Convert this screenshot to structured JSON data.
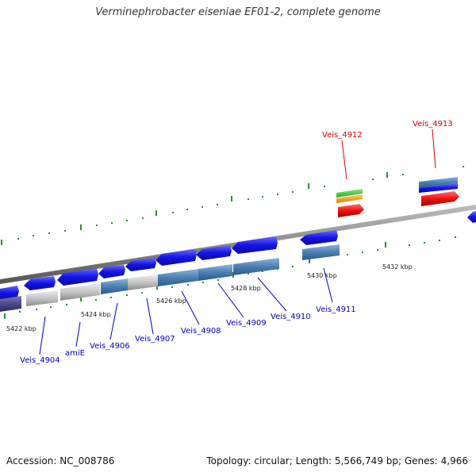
{
  "title": "Verminephrobacter eiseniae EF01-2, complete genome",
  "footer": {
    "accession": "Accession: NC_008786",
    "summary": "Topology: circular; Length: 5,566,749 bp; Genes: 4,966"
  },
  "colors": {
    "backbone": "#8c8c8c",
    "forward_gene": "#1414e6",
    "reverse_gene_steel": "#4a7fb3",
    "reverse_gene_gray": "#bdbdbd",
    "pseudo_gene": "#4a4a8c",
    "tick": "#2e8b2e",
    "label_blue": "#0000c8",
    "label_red": "#d40000",
    "highlight_green": "#33cc33",
    "highlight_orange": "#ff9900",
    "highlight_red": "#ee1111"
  },
  "scale_ticks": [
    {
      "label": "5422 kbp"
    },
    {
      "label": "5424 kbp"
    },
    {
      "label": "5426 kbp"
    },
    {
      "label": "5428 kbp"
    },
    {
      "label": "5430 kbp"
    },
    {
      "label": "5432 kbp"
    }
  ],
  "gene_labels": [
    {
      "label": "Veis_4904",
      "color": "blue"
    },
    {
      "label": "amiE",
      "color": "blue"
    },
    {
      "label": "Veis_4906",
      "color": "blue"
    },
    {
      "label": "Veis_4907",
      "color": "blue"
    },
    {
      "label": "Veis_4908",
      "color": "blue"
    },
    {
      "label": "Veis_4909",
      "color": "blue"
    },
    {
      "label": "Veis_4910",
      "color": "blue"
    },
    {
      "label": "Veis_4911",
      "color": "blue"
    },
    {
      "label": "Veis_4912",
      "color": "red"
    },
    {
      "label": "Veis_4913",
      "color": "red"
    }
  ]
}
